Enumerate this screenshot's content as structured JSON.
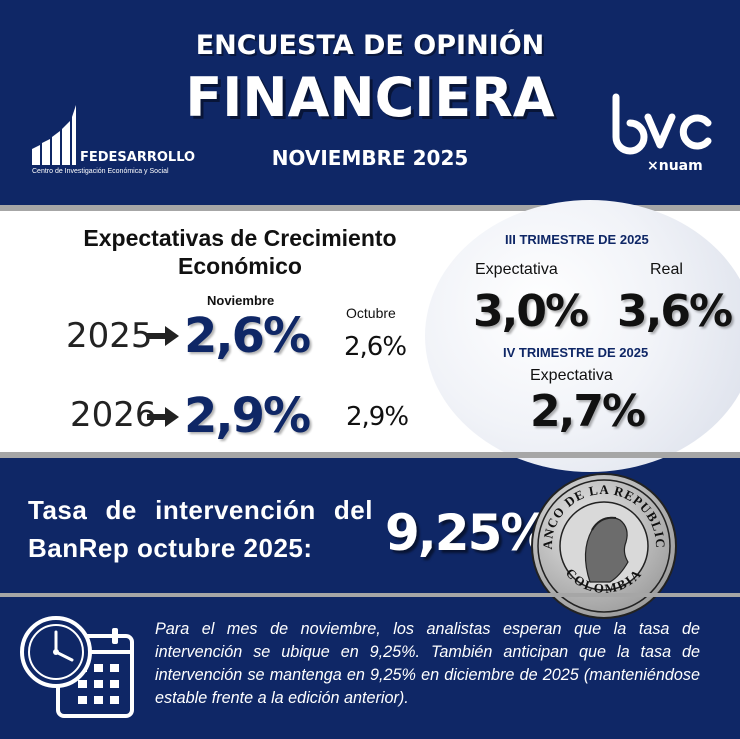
{
  "header": {
    "title_line1": "ENCUESTA DE OPINIÓN",
    "title_line2": "FINANCIERA",
    "subtitle": "NOVIEMBRE 2025",
    "fedesarrollo_name": "FEDESARROLLO",
    "fedesarrollo_tagline": "Centro de Investigación Económica y Social",
    "bvc_logo_text": "bvc",
    "bvc_sub": "×nuam"
  },
  "growth": {
    "title": "Expectativas de Crecimiento Económico",
    "col_current": "Noviembre",
    "col_previous": "Octubre",
    "rows": [
      {
        "year": "2025",
        "current": "2,6%",
        "previous": "2,6%"
      },
      {
        "year": "2026",
        "current": "2,9%",
        "previous": "2,9%"
      }
    ]
  },
  "quarters": {
    "q3_title": "III TRIMESTRE DE 2025",
    "q3_expect_label": "Expectativa",
    "q3_real_label": "Real",
    "q3_expect_value": "3,0%",
    "q3_real_value": "3,6%",
    "q4_title": "IV TRIMESTRE DE 2025",
    "q4_expect_label": "Expectativa",
    "q4_expect_value": "2,7%"
  },
  "rate": {
    "label_line1": "Tasa de intervención del",
    "label_line2": "BanRep octubre 2025:",
    "value": "9,25%",
    "seal_top_text": "BANCO DE LA REPUBLICA",
    "seal_bottom_text": "COLOMBIA"
  },
  "note": "Para el mes de noviembre, los analistas esperan que la tasa de intervención se ubique en 9,25%. También anticipan que la tasa de intervención se mantenga en 9,25% en diciembre de 2025 (manteniéndose estable frente a la edición anterior).",
  "colors": {
    "navy": "#0f2766",
    "gray_band": "#a6a6a6"
  },
  "icons": [
    "fedesarrollo-logo-icon",
    "bvc-logo-icon",
    "arrow-right-icon",
    "banrep-seal-icon",
    "clock-calendar-icon"
  ]
}
